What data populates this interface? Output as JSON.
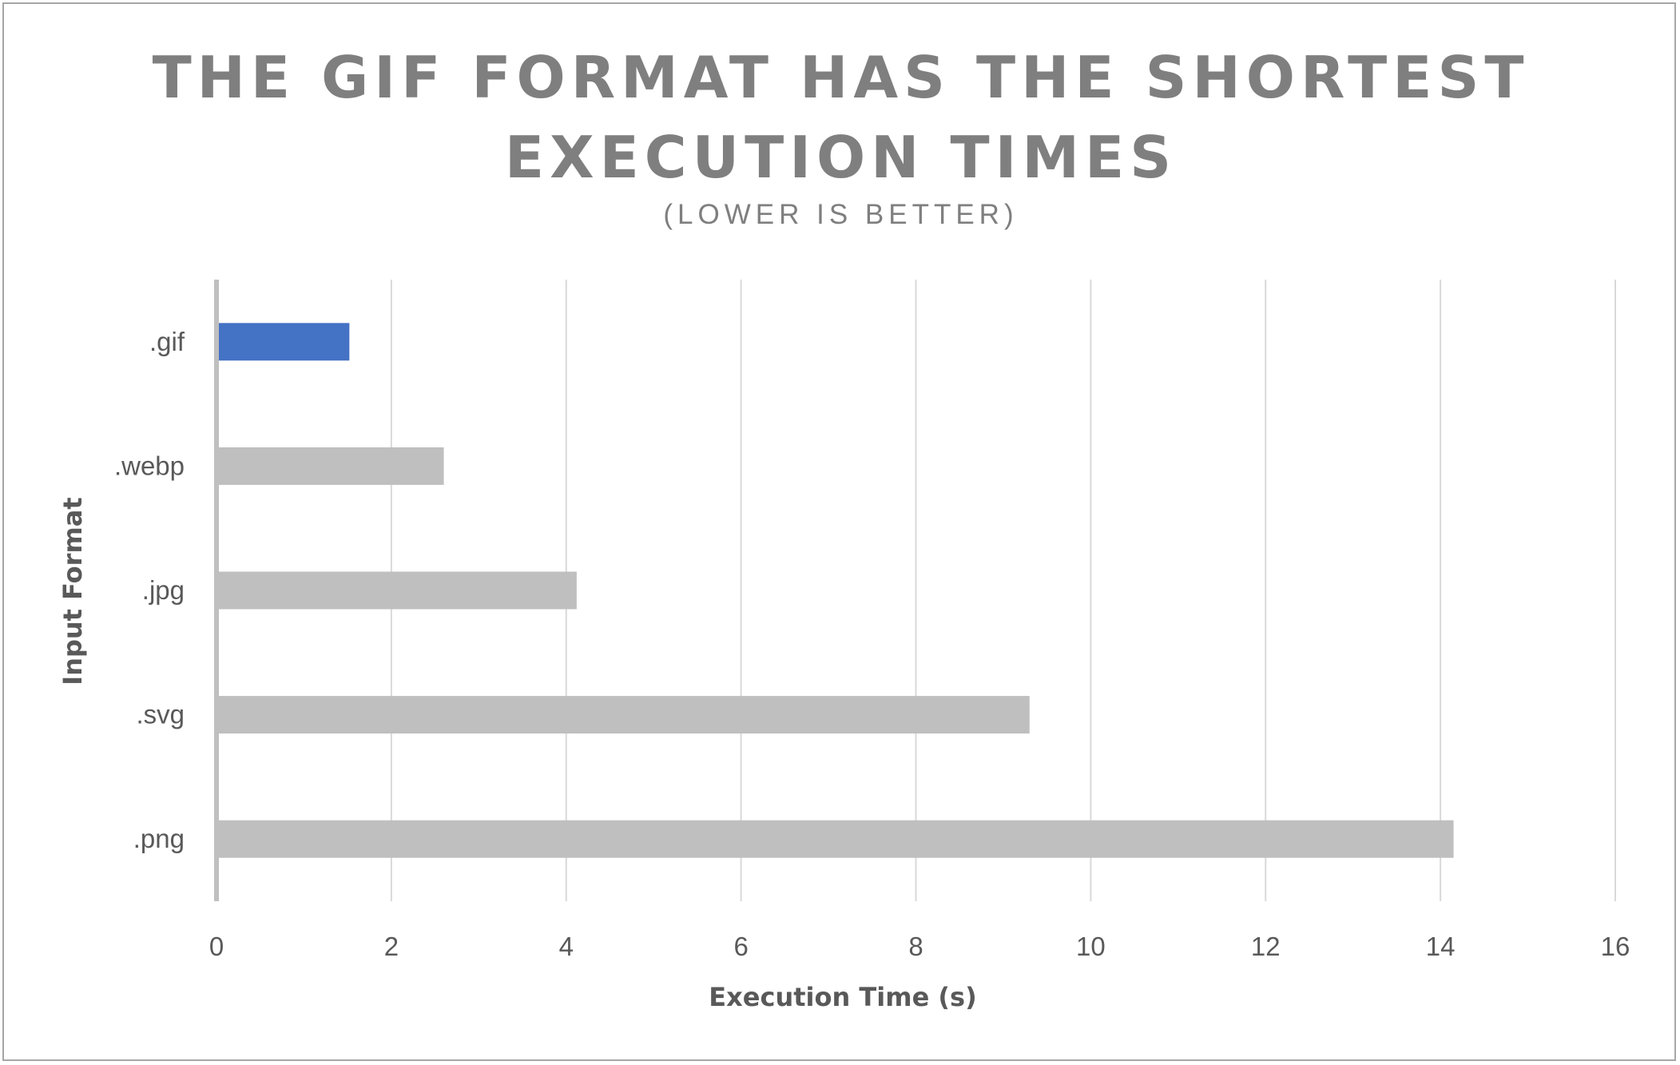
{
  "chart_data": {
    "type": "bar",
    "orientation": "horizontal",
    "title": "THE GIF FORMAT HAS THE SHORTEST EXECUTION TIMES",
    "title_lines": [
      "THE GIF FORMAT HAS THE SHORTEST",
      "EXECUTION TIMES"
    ],
    "subtitle": "(LOWER IS BETTER)",
    "xlabel": "Execution Time (s)",
    "ylabel": "Input Format",
    "categories": [
      ".gif",
      ".webp",
      ".jpg",
      ".svg",
      ".png"
    ],
    "values": [
      1.52,
      2.6,
      4.12,
      9.3,
      14.15
    ],
    "xlim": [
      0,
      16
    ],
    "xticks": [
      0,
      2,
      4,
      6,
      8,
      10,
      12,
      14,
      16
    ],
    "grid": "vertical",
    "legend": "none",
    "highlight_category": ".gif",
    "colors": {
      "highlight": "#4472c4",
      "default": "#bfbfbf",
      "grid": "#d9d9d9",
      "axis": "#bfbfbf",
      "text": "#595959",
      "title": "#7f7f7f"
    }
  }
}
